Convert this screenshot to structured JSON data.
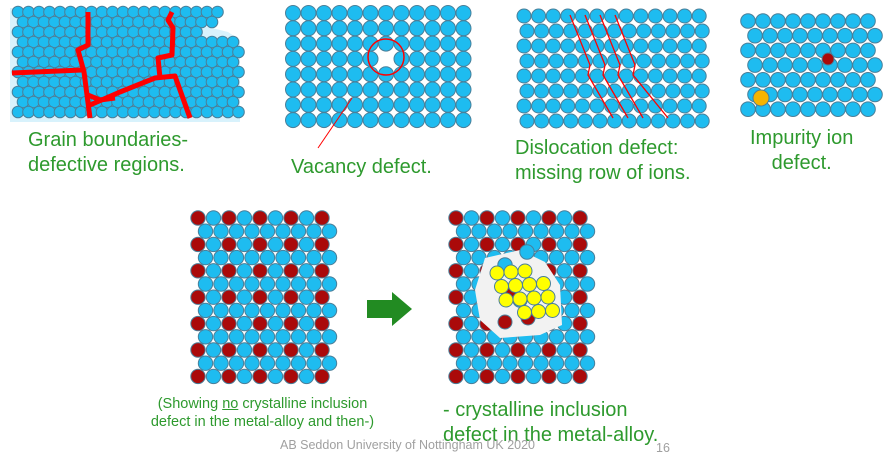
{
  "colors": {
    "ion": "#1ebcf0",
    "ion_stroke": "#4a7f99",
    "dark_ion": "#aa0a0a",
    "impurity_gold": "#f5b400",
    "inclusion": "#ffff00",
    "boundary": "#ff0000",
    "caption": "#2e9a2e",
    "arrow": "#228b22"
  },
  "panels": {
    "grain": {
      "line1": "Grain boundaries-",
      "line2": "defective regions."
    },
    "vacancy": {
      "label": "Vacancy defect."
    },
    "dislocation": {
      "line1": "Dislocation defect:",
      "line2": "missing row of ions."
    },
    "impurity": {
      "line1": "Impurity ion",
      "line2": "defect."
    }
  },
  "bottom": {
    "left_caption": {
      "pre": "(Showing ",
      "emph": "no",
      "post": " crystalline inclusion",
      "line2": "defect in the metal-alloy and then-)"
    },
    "arrow_icon": "right-arrow",
    "right_caption": {
      "line1": "- crystalline inclusion",
      "line2": "defect in the metal-alloy."
    }
  },
  "footer": {
    "credit": "AB Seddon  University of Nottingham UK 2020",
    "page": "16"
  }
}
